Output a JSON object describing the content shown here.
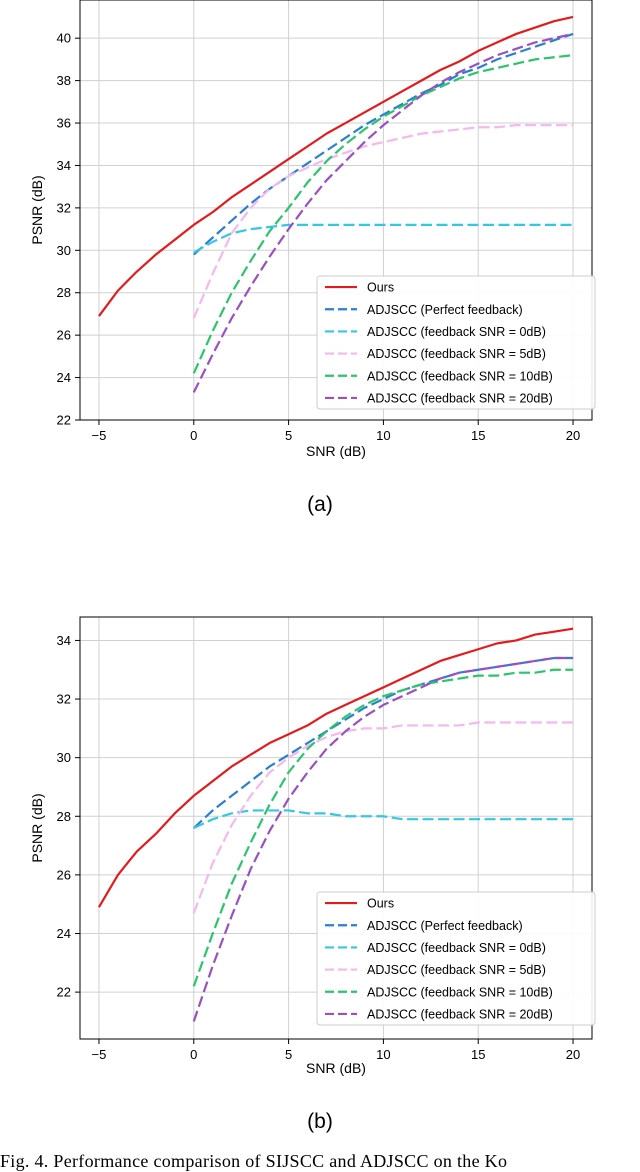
{
  "figure": {
    "subcaptions": [
      "(a)",
      "(b)"
    ],
    "caption": "Fig. 4.  Performance comparison of SIJSCC and ADJSCC on the Ko"
  },
  "chart_data": [
    {
      "type": "line",
      "xlabel": "SNR (dB)",
      "ylabel": "PSNR (dB)",
      "xlim": [
        -6,
        21
      ],
      "ylim": [
        22,
        41.8
      ],
      "xticks": [
        -5,
        0,
        5,
        10,
        15,
        20
      ],
      "yticks": [
        22,
        24,
        26,
        28,
        30,
        32,
        34,
        36,
        38,
        40
      ],
      "grid": true,
      "legend_position": "lower-right",
      "series": [
        {
          "name": "Ours",
          "color": "#e41a1c",
          "dash": "solid",
          "x": [
            -5,
            -4,
            -3,
            -2,
            -1,
            0,
            1,
            2,
            3,
            4,
            5,
            6,
            7,
            8,
            9,
            10,
            11,
            12,
            13,
            14,
            15,
            16,
            17,
            18,
            19,
            20
          ],
          "y": [
            26.9,
            28.1,
            29.0,
            29.8,
            30.5,
            31.2,
            31.8,
            32.5,
            33.1,
            33.7,
            34.3,
            34.9,
            35.5,
            36.0,
            36.5,
            37.0,
            37.5,
            38.0,
            38.5,
            38.9,
            39.4,
            39.8,
            40.2,
            40.5,
            40.8,
            41.0
          ]
        },
        {
          "name": "ADJSCC (Perfect feedback)",
          "color": "#2a7fd4",
          "dash": "longdash",
          "x": [
            0,
            1,
            2,
            3,
            4,
            5,
            6,
            7,
            8,
            9,
            10,
            11,
            12,
            13,
            14,
            15,
            16,
            17,
            18,
            19,
            20
          ],
          "y": [
            29.8,
            30.6,
            31.4,
            32.2,
            32.9,
            33.5,
            34.1,
            34.7,
            35.3,
            35.9,
            36.4,
            36.9,
            37.4,
            37.8,
            38.3,
            38.6,
            39.0,
            39.3,
            39.6,
            39.9,
            40.2
          ]
        },
        {
          "name": "ADJSCC (feedback SNR = 0dB)",
          "color": "#35c6e6",
          "dash": "longdash",
          "x": [
            0,
            1,
            2,
            3,
            4,
            5,
            6,
            7,
            8,
            9,
            10,
            11,
            12,
            13,
            14,
            15,
            16,
            17,
            18,
            19,
            20
          ],
          "y": [
            29.9,
            30.4,
            30.8,
            31.0,
            31.1,
            31.2,
            31.2,
            31.2,
            31.2,
            31.2,
            31.2,
            31.2,
            31.2,
            31.2,
            31.2,
            31.2,
            31.2,
            31.2,
            31.2,
            31.2,
            31.2
          ]
        },
        {
          "name": "ADJSCC (feedback SNR = 5dB)",
          "color": "#f5b8ee",
          "dash": "longdash",
          "x": [
            0,
            1,
            2,
            3,
            4,
            5,
            6,
            7,
            8,
            9,
            10,
            11,
            12,
            13,
            14,
            15,
            16,
            17,
            18,
            19,
            20
          ],
          "y": [
            26.8,
            28.9,
            30.8,
            32.0,
            32.9,
            33.5,
            33.9,
            34.3,
            34.6,
            34.9,
            35.1,
            35.3,
            35.5,
            35.6,
            35.7,
            35.8,
            35.8,
            35.9,
            35.9,
            35.9,
            35.9
          ]
        },
        {
          "name": "ADJSCC (feedback SNR = 10dB)",
          "color": "#2cc46a",
          "dash": "longdash",
          "x": [
            0,
            1,
            2,
            3,
            4,
            5,
            6,
            7,
            8,
            9,
            10,
            11,
            12,
            13,
            14,
            15,
            16,
            17,
            18,
            19,
            20
          ],
          "y": [
            24.2,
            26.2,
            28.0,
            29.5,
            30.9,
            32.0,
            33.2,
            34.2,
            35.0,
            35.7,
            36.3,
            36.8,
            37.3,
            37.7,
            38.1,
            38.4,
            38.6,
            38.8,
            39.0,
            39.1,
            39.2
          ]
        },
        {
          "name": "ADJSCC (feedback SNR = 20dB)",
          "color": "#9a4fc2",
          "dash": "longdash",
          "x": [
            0,
            1,
            2,
            3,
            4,
            5,
            6,
            7,
            8,
            9,
            10,
            11,
            12,
            13,
            14,
            15,
            16,
            17,
            18,
            19,
            20
          ],
          "y": [
            23.3,
            25.1,
            26.8,
            28.3,
            29.7,
            31.0,
            32.2,
            33.3,
            34.2,
            35.1,
            35.9,
            36.6,
            37.3,
            37.9,
            38.4,
            38.8,
            39.2,
            39.5,
            39.8,
            40.0,
            40.2
          ]
        }
      ]
    },
    {
      "type": "line",
      "xlabel": "SNR (dB)",
      "ylabel": "PSNR (dB)",
      "xlim": [
        -6,
        21
      ],
      "ylim": [
        20.4,
        34.8
      ],
      "xticks": [
        -5,
        0,
        5,
        10,
        15,
        20
      ],
      "yticks": [
        22,
        24,
        26,
        28,
        30,
        32,
        34
      ],
      "grid": true,
      "legend_position": "lower-right",
      "series": [
        {
          "name": "Ours",
          "color": "#e41a1c",
          "dash": "solid",
          "x": [
            -5,
            -4,
            -3,
            -2,
            -1,
            0,
            1,
            2,
            3,
            4,
            5,
            6,
            7,
            8,
            9,
            10,
            11,
            12,
            13,
            14,
            15,
            16,
            17,
            18,
            19,
            20
          ],
          "y": [
            24.9,
            26.0,
            26.8,
            27.4,
            28.1,
            28.7,
            29.2,
            29.7,
            30.1,
            30.5,
            30.8,
            31.1,
            31.5,
            31.8,
            32.1,
            32.4,
            32.7,
            33.0,
            33.3,
            33.5,
            33.7,
            33.9,
            34.0,
            34.2,
            34.3,
            34.4
          ]
        },
        {
          "name": "ADJSCC (Perfect feedback)",
          "color": "#2a7fd4",
          "dash": "longdash",
          "x": [
            0,
            1,
            2,
            3,
            4,
            5,
            6,
            7,
            8,
            9,
            10,
            11,
            12,
            13,
            14,
            15,
            16,
            17,
            18,
            19,
            20
          ],
          "y": [
            27.6,
            28.2,
            28.7,
            29.2,
            29.7,
            30.1,
            30.5,
            30.9,
            31.3,
            31.7,
            32.0,
            32.3,
            32.5,
            32.7,
            32.9,
            33.0,
            33.1,
            33.2,
            33.3,
            33.4,
            33.4
          ]
        },
        {
          "name": "ADJSCC (feedback SNR = 0dB)",
          "color": "#35c6e6",
          "dash": "longdash",
          "x": [
            0,
            1,
            2,
            3,
            4,
            5,
            6,
            7,
            8,
            9,
            10,
            11,
            12,
            13,
            14,
            15,
            16,
            17,
            18,
            19,
            20
          ],
          "y": [
            27.6,
            27.9,
            28.1,
            28.2,
            28.2,
            28.2,
            28.1,
            28.1,
            28.0,
            28.0,
            28.0,
            27.9,
            27.9,
            27.9,
            27.9,
            27.9,
            27.9,
            27.9,
            27.9,
            27.9,
            27.9
          ]
        },
        {
          "name": "ADJSCC (feedback SNR = 5dB)",
          "color": "#f5b8ee",
          "dash": "longdash",
          "x": [
            0,
            1,
            2,
            3,
            4,
            5,
            6,
            7,
            8,
            9,
            10,
            11,
            12,
            13,
            14,
            15,
            16,
            17,
            18,
            19,
            20
          ],
          "y": [
            24.7,
            26.4,
            27.7,
            28.7,
            29.5,
            30.0,
            30.4,
            30.7,
            30.9,
            31.0,
            31.0,
            31.1,
            31.1,
            31.1,
            31.1,
            31.2,
            31.2,
            31.2,
            31.2,
            31.2,
            31.2
          ]
        },
        {
          "name": "ADJSCC (feedback SNR = 10dB)",
          "color": "#2cc46a",
          "dash": "longdash",
          "x": [
            0,
            1,
            2,
            3,
            4,
            5,
            6,
            7,
            8,
            9,
            10,
            11,
            12,
            13,
            14,
            15,
            16,
            17,
            18,
            19,
            20
          ],
          "y": [
            22.2,
            24.0,
            25.7,
            27.1,
            28.4,
            29.5,
            30.3,
            30.9,
            31.4,
            31.8,
            32.1,
            32.3,
            32.5,
            32.6,
            32.7,
            32.8,
            32.8,
            32.9,
            32.9,
            33.0,
            33.0
          ]
        },
        {
          "name": "ADJSCC (feedback SNR = 20dB)",
          "color": "#9a4fc2",
          "dash": "longdash",
          "x": [
            0,
            1,
            2,
            3,
            4,
            5,
            6,
            7,
            8,
            9,
            10,
            11,
            12,
            13,
            14,
            15,
            16,
            17,
            18,
            19,
            20
          ],
          "y": [
            21.0,
            22.9,
            24.6,
            26.2,
            27.5,
            28.6,
            29.5,
            30.3,
            30.9,
            31.4,
            31.8,
            32.1,
            32.4,
            32.7,
            32.9,
            33.0,
            33.1,
            33.2,
            33.3,
            33.4,
            33.4
          ]
        }
      ]
    }
  ]
}
